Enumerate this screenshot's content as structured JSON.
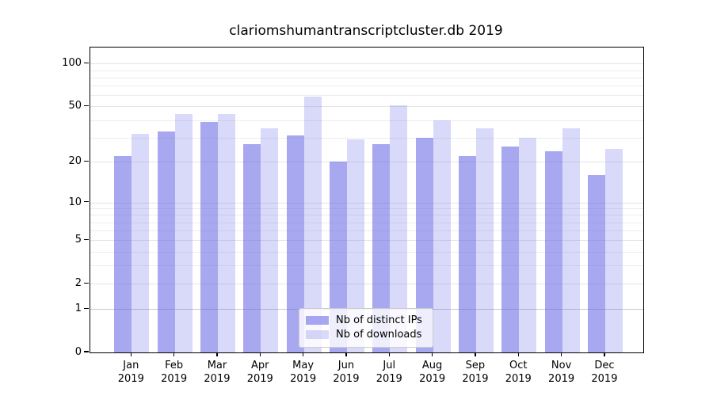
{
  "title": "clariomshumantranscriptcluster.db 2019",
  "colors": {
    "bar_base": "#6666e6",
    "bar_dark_blend": "#a8a8f0",
    "bar_light_blend": "#d9d9f8",
    "gridline_minor": "#ededed",
    "gridline_major": "#e4e4e4",
    "gridline_one": "#c8c8c8",
    "frame": "#000000"
  },
  "legend": {
    "items": [
      {
        "label": "Nb of distinct IPs",
        "series": "distinct-ips"
      },
      {
        "label": "Nb of downloads",
        "series": "downloads"
      }
    ]
  },
  "chart_data": {
    "type": "bar",
    "title": "clariomshumantranscriptcluster.db 2019",
    "categories": [
      "Jan 2019",
      "Feb 2019",
      "Mar 2019",
      "Apr 2019",
      "May 2019",
      "Jun 2019",
      "Jul 2019",
      "Aug 2019",
      "Sep 2019",
      "Oct 2019",
      "Nov 2019",
      "Dec 2019"
    ],
    "series": [
      {
        "name": "Nb of distinct IPs",
        "values": [
          22,
          33,
          39,
          27,
          31,
          20,
          27,
          30,
          22,
          26,
          24,
          16
        ]
      },
      {
        "name": "Nb of downloads",
        "values": [
          32,
          44,
          44,
          35,
          59,
          29,
          51,
          40,
          35,
          30,
          35,
          25
        ]
      }
    ],
    "xlabel": "",
    "ylabel": "",
    "yscale": "log1p",
    "ylim": [
      0,
      129
    ],
    "yticks": [
      0,
      1,
      2,
      5,
      10,
      20,
      50,
      100
    ],
    "minor_gridlines": [
      3,
      4,
      6,
      7,
      8,
      9,
      30,
      40,
      60,
      70,
      80,
      90
    ],
    "grid": true,
    "legend_position": "lower center"
  }
}
